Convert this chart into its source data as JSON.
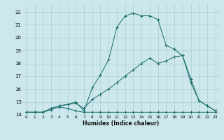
{
  "bg_color": "#cce8ec",
  "grid_color": "#aacdd4",
  "line_color": "#1a6b6b",
  "marker": "+",
  "marker_size": 3,
  "marker_lw": 0.8,
  "xlabel": "Humidex (Indice chaleur)",
  "xlim": [
    -0.5,
    23.5
  ],
  "ylim": [
    14.0,
    22.6
  ],
  "yticks": [
    14,
    15,
    16,
    17,
    18,
    19,
    20,
    21,
    22
  ],
  "xticks": [
    0,
    1,
    2,
    3,
    4,
    5,
    6,
    7,
    8,
    9,
    10,
    11,
    12,
    13,
    14,
    15,
    16,
    17,
    18,
    19,
    20,
    21,
    22,
    23
  ],
  "series": [
    {
      "x": [
        0,
        1,
        2,
        3,
        4,
        5,
        6,
        7,
        8,
        9,
        10,
        11,
        12,
        13,
        14,
        15,
        16,
        17,
        18,
        19,
        20,
        21,
        22,
        23
      ],
      "y": [
        14.2,
        14.2,
        14.2,
        14.4,
        14.6,
        14.5,
        14.3,
        14.2,
        14.2,
        14.2,
        14.2,
        14.2,
        14.2,
        14.2,
        14.2,
        14.2,
        14.2,
        14.2,
        14.2,
        14.2,
        14.2,
        14.2,
        14.2,
        14.2
      ]
    },
    {
      "x": [
        0,
        1,
        2,
        3,
        4,
        5,
        6,
        7,
        8,
        9,
        10,
        11,
        12,
        13,
        14,
        15,
        16,
        17,
        18,
        19,
        20,
        21,
        22,
        23
      ],
      "y": [
        14.2,
        14.2,
        14.2,
        14.5,
        14.7,
        14.8,
        14.9,
        14.5,
        15.2,
        15.6,
        16.0,
        16.5,
        17.0,
        17.5,
        18.0,
        18.4,
        18.0,
        18.2,
        18.5,
        18.6,
        16.8,
        15.1,
        14.7,
        14.3
      ]
    },
    {
      "x": [
        0,
        1,
        2,
        3,
        4,
        5,
        6,
        7,
        8,
        9,
        10,
        11,
        12,
        13,
        14,
        15,
        16,
        17,
        18,
        19,
        20,
        21,
        22,
        23
      ],
      "y": [
        14.2,
        14.2,
        14.2,
        14.5,
        14.7,
        14.8,
        15.0,
        14.3,
        16.1,
        17.1,
        18.3,
        20.8,
        21.7,
        21.9,
        21.7,
        21.7,
        21.4,
        19.4,
        19.1,
        18.6,
        16.5,
        15.1,
        14.7,
        14.3
      ]
    }
  ]
}
